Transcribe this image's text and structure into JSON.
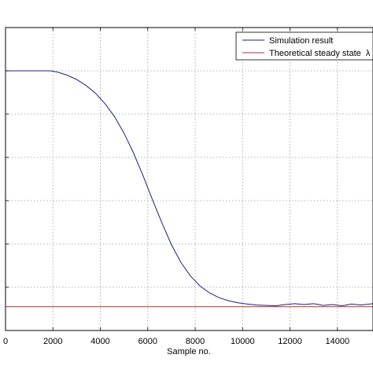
{
  "chart_data": {
    "type": "line",
    "title": "",
    "xlabel": "Sample no.",
    "ylabel": "",
    "xlim": [
      0,
      15500
    ],
    "ylim": [
      0,
      7
    ],
    "x_ticks": [
      0,
      2000,
      4000,
      6000,
      8000,
      10000,
      12000,
      14000
    ],
    "x_tick_labels": [
      "0",
      "2000",
      "4000",
      "6000",
      "8000",
      "10000",
      "12000",
      "14000"
    ],
    "y_ticks": [
      1,
      2,
      3,
      4,
      5,
      6
    ],
    "y_tick_labels": [],
    "grid": true,
    "legend_position": "top-right",
    "series": [
      {
        "name": "Simulation result",
        "color": "#1f1f7a",
        "x": [
          0,
          1900,
          2200,
          2600,
          3000,
          3400,
          3800,
          4200,
          4600,
          5000,
          5400,
          5800,
          6200,
          6600,
          7000,
          7400,
          7800,
          8200,
          8600,
          9000,
          9400,
          9800,
          10200,
          10600,
          11000,
          11400,
          11800,
          12200,
          12600,
          13000,
          13400,
          13800,
          14200,
          14600,
          15000,
          15500
        ],
        "y": [
          6.0,
          6.0,
          5.97,
          5.9,
          5.8,
          5.66,
          5.48,
          5.24,
          4.94,
          4.56,
          4.1,
          3.58,
          3.02,
          2.48,
          1.98,
          1.57,
          1.26,
          1.03,
          0.87,
          0.76,
          0.69,
          0.64,
          0.61,
          0.59,
          0.58,
          0.57,
          0.6,
          0.62,
          0.6,
          0.62,
          0.58,
          0.6,
          0.57,
          0.61,
          0.59,
          0.62
        ]
      },
      {
        "name": "Theoretical steady state  λ",
        "color": "#b03030",
        "x": [
          0,
          15500
        ],
        "y": [
          0.55,
          0.55
        ]
      }
    ]
  }
}
